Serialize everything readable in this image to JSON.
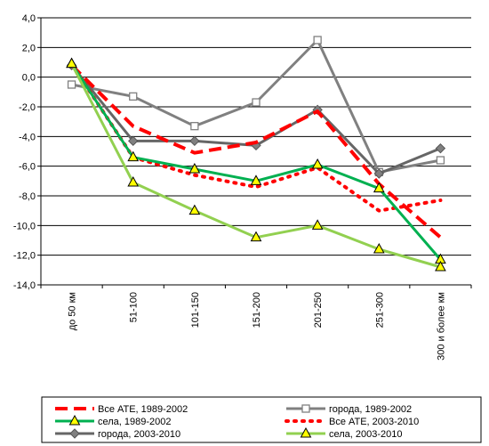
{
  "chart_data": {
    "type": "line",
    "categories": [
      "до 50 км",
      "51-100",
      "101-150",
      "151-200",
      "201-250",
      "251-300",
      "300 и более км"
    ],
    "ylim": [
      -14,
      4
    ],
    "ytick_step": 2,
    "ytick_labels": [
      "4,0",
      "2,0",
      "0,0",
      "-2,0",
      "-4,0",
      "-6,0",
      "-8,0",
      "-10,0",
      "-12,0",
      "-14,0"
    ],
    "grid": true,
    "legend_position": "bottom",
    "series": [
      {
        "name": "Все АТЕ, 1989-2002",
        "values": [
          0.8,
          -3.3,
          -5.1,
          -4.4,
          -2.3,
          -7.2,
          -10.8
        ],
        "color": "#ff0000",
        "style": "dashed",
        "marker": "none"
      },
      {
        "name": "города, 1989-2002",
        "values": [
          -0.5,
          -1.3,
          -3.3,
          -1.7,
          2.5,
          -6.4,
          -5.6
        ],
        "color": "#808080",
        "style": "solid",
        "marker": "square"
      },
      {
        "name": "села, 1989-2002",
        "values": [
          0.9,
          -5.4,
          -6.2,
          -7.0,
          -5.9,
          -7.5,
          -12.3
        ],
        "color": "#00b050",
        "style": "solid",
        "marker": "triangle"
      },
      {
        "name": "Все АТЕ, 2003-2010",
        "values": [
          0.9,
          -5.4,
          -6.6,
          -7.4,
          -6.1,
          -9.0,
          -8.3
        ],
        "color": "#ff0000",
        "style": "dotted",
        "marker": "none"
      },
      {
        "name": "города, 2003-2010",
        "values": [
          0.8,
          -4.3,
          -4.3,
          -4.6,
          -2.2,
          -6.5,
          -4.8
        ],
        "color": "#666666",
        "style": "solid",
        "marker": "diamond"
      },
      {
        "name": "села, 2003-2010",
        "values": [
          0.9,
          -7.1,
          -9.0,
          -10.8,
          -10.0,
          -11.6,
          -12.8
        ],
        "color": "#92d050",
        "style": "solid",
        "marker": "triangle"
      }
    ]
  }
}
